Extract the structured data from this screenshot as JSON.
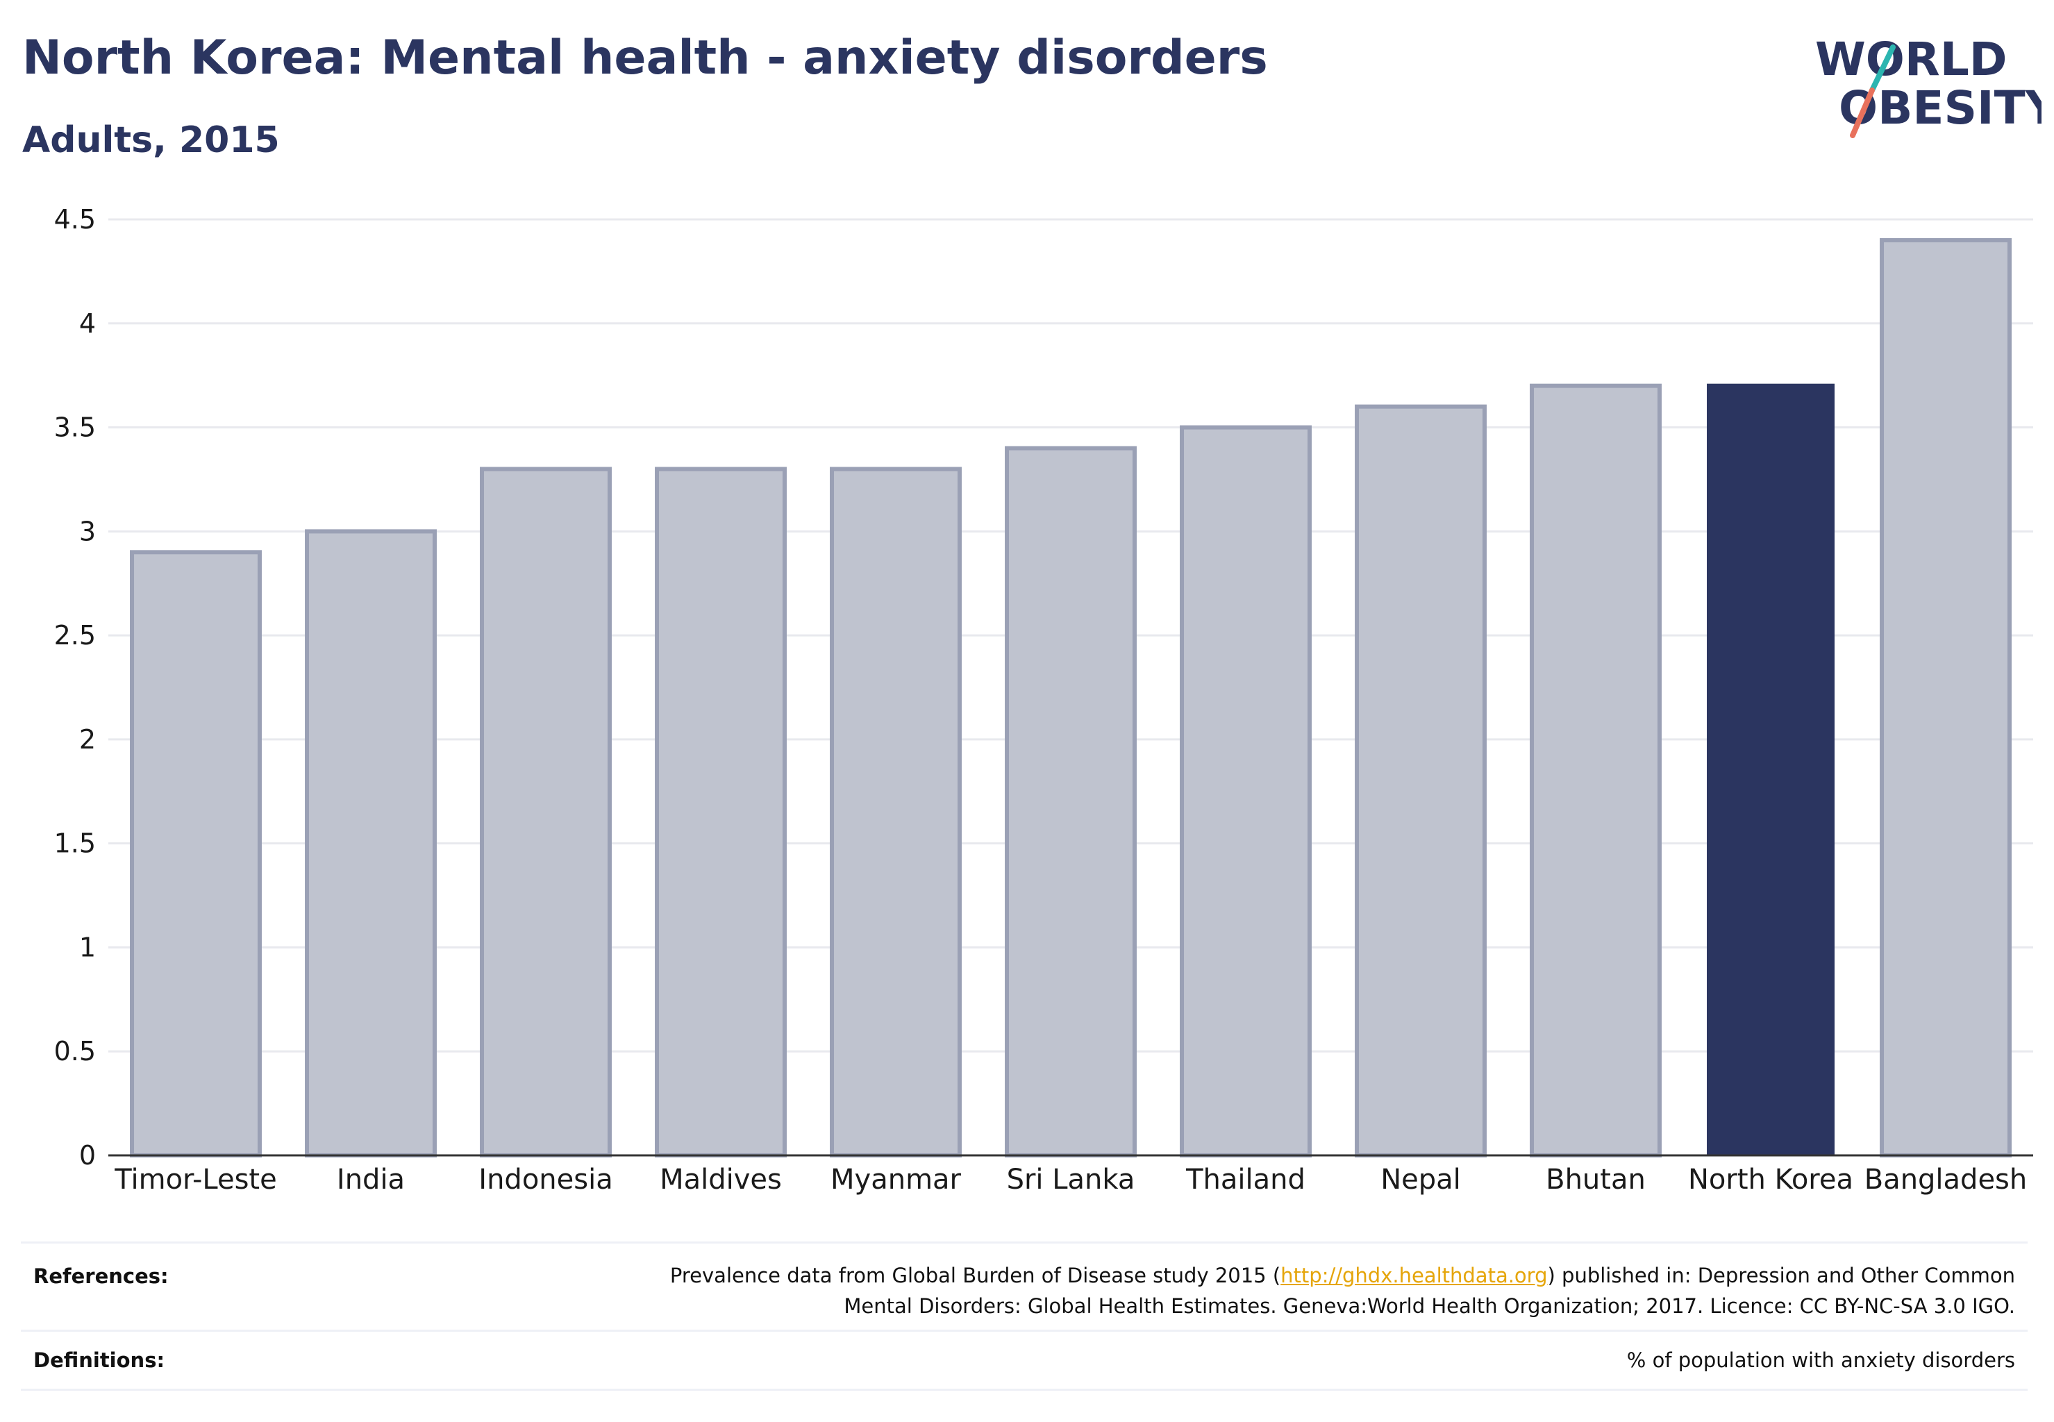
{
  "title": "North Korea: Mental health - anxiety disorders",
  "subtitle": "Adults, 2015",
  "logo": {
    "line1": "WORLD",
    "line2": "OBESITY",
    "colors": {
      "text": "#2b3560",
      "slash_top": "#2bb5b0",
      "slash_bottom": "#e8715c"
    }
  },
  "colors": {
    "bar": "#bfc3cf",
    "bar_stroke": "#9aa0b5",
    "highlight": "#2b3560",
    "grid": "#e8e9ee",
    "axis": "#333333"
  },
  "chart_data": {
    "type": "bar",
    "categories": [
      "Timor-Leste",
      "India",
      "Indonesia",
      "Maldives",
      "Myanmar",
      "Sri Lanka",
      "Thailand",
      "Nepal",
      "Bhutan",
      "North Korea",
      "Bangladesh"
    ],
    "values": [
      2.9,
      3.0,
      3.3,
      3.3,
      3.3,
      3.4,
      3.5,
      3.6,
      3.7,
      3.71,
      4.4
    ],
    "highlight": "North Korea",
    "ylim": [
      0,
      4.5
    ],
    "yticks": [
      0,
      0.5,
      1,
      1.5,
      2,
      2.5,
      3,
      3.5,
      4,
      4.5
    ],
    "ytick_labels": [
      "0",
      "0.5",
      "1",
      "1.5",
      "2",
      "2.5",
      "3",
      "3.5",
      "4",
      "4.5"
    ],
    "grid": true,
    "xlabel": "",
    "ylabel": ""
  },
  "footer": {
    "references_label": "References:",
    "references_text_before": "Prevalence data from Global Burden of Disease study 2015 (",
    "references_link": "http://ghdx.healthdata.org",
    "references_text_after": ") published in: Depression and Other Common",
    "references_line2": "Mental Disorders: Global Health Estimates. Geneva:World Health Organization; 2017. Licence: CC BY-NC-SA 3.0 IGO.",
    "definitions_label": "Definitions:",
    "definitions_text": "% of population with anxiety disorders"
  }
}
